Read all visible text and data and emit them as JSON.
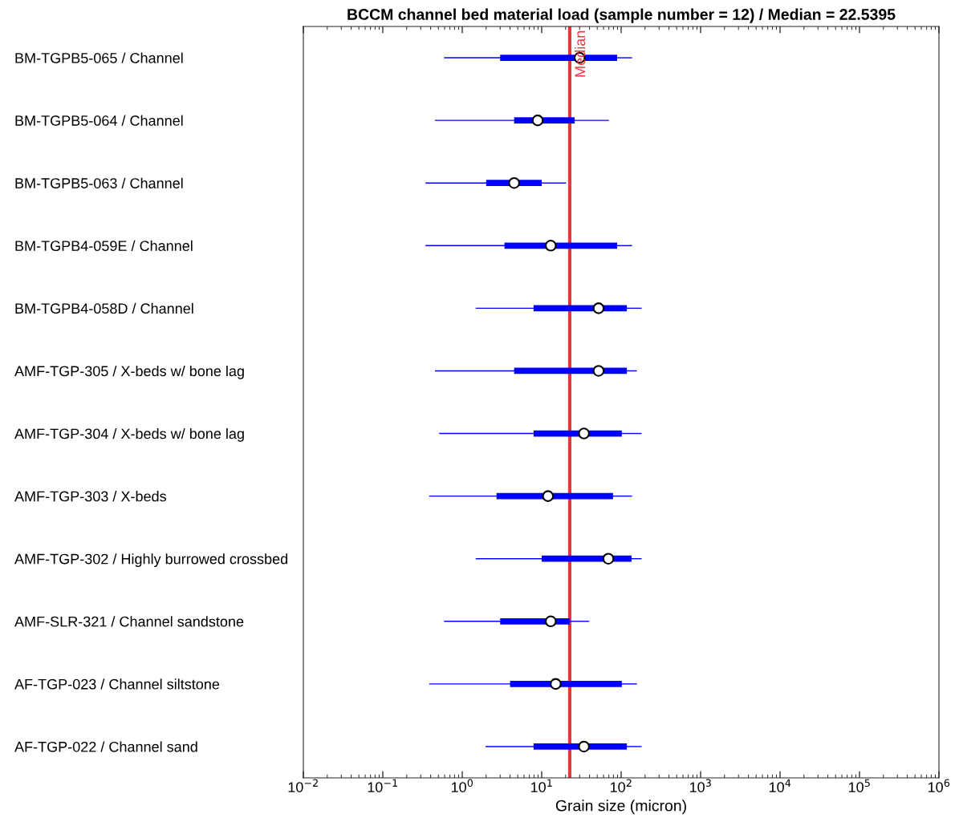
{
  "chart_data": {
    "type": "box",
    "orientation": "horizontal",
    "title": "BCCM channel bed material load (sample number = 12) / Median = 22.5395",
    "xlabel": "Grain size (micron)",
    "log": "x",
    "grid": false,
    "color": "#0000ff",
    "categories": [
      "BM-TGPB5-065 / Channel",
      "BM-TGPB5-064 / Channel",
      "BM-TGPB5-063 / Channel",
      "BM-TGPB4-059E / Channel",
      "BM-TGPB4-058D / Channel",
      "AMF-TGP-305 / X-beds w/ bone lag",
      "AMF-TGP-304 / X-beds w/ bone lag",
      "AMF-TGP-303 / X-beds",
      "AMF-TGP-302 / Highly burrowed crossbed",
      "AMF-SLR-321 / Channel sandstone",
      "AF-TGP-023 / Channel siltstone",
      "AF-TGP-022 / Channel sand"
    ],
    "boxes": [
      {
        "low": 0.6,
        "q1": 3.0,
        "median": 30,
        "q3": 89,
        "high": 135
      },
      {
        "low": 0.46,
        "q1": 4.5,
        "median": 8.9,
        "q3": 26,
        "high": 69
      },
      {
        "low": 0.35,
        "q1": 2.0,
        "median": 4.5,
        "q3": 10,
        "high": 20
      },
      {
        "low": 0.35,
        "q1": 3.4,
        "median": 13,
        "q3": 89,
        "high": 135
      },
      {
        "low": 1.5,
        "q1": 7.9,
        "median": 52,
        "q3": 118,
        "high": 178
      },
      {
        "low": 0.46,
        "q1": 4.5,
        "median": 52,
        "q3": 118,
        "high": 155
      },
      {
        "low": 0.52,
        "q1": 7.9,
        "median": 34,
        "q3": 102,
        "high": 178
      },
      {
        "low": 0.39,
        "q1": 2.7,
        "median": 12,
        "q3": 79,
        "high": 135
      },
      {
        "low": 1.5,
        "q1": 10,
        "median": 69,
        "q3": 135,
        "high": 178
      },
      {
        "low": 0.6,
        "q1": 3.0,
        "median": 13,
        "q3": 22.5,
        "high": 39
      },
      {
        "low": 0.39,
        "q1": 4.0,
        "median": 15,
        "q3": 102,
        "high": 155
      },
      {
        "low": 2.0,
        "q1": 7.9,
        "median": 34,
        "q3": 118,
        "high": 178
      }
    ],
    "xlim": [
      0.01,
      1000000
    ],
    "xticks": [
      {
        "value": 0.01,
        "label": "10$^{−2}$"
      },
      {
        "value": 0.1,
        "label": "10$^{−1}$"
      },
      {
        "value": 1,
        "label": "10$^{0}$"
      },
      {
        "value": 10,
        "label": "10$^{1}$"
      },
      {
        "value": 100,
        "label": "10$^{2}$"
      },
      {
        "value": 1000,
        "label": "10$^{3}$"
      },
      {
        "value": 10000,
        "label": "10$^{4}$"
      },
      {
        "value": 100000,
        "label": "10$^{5}$"
      },
      {
        "value": 1000000,
        "label": "10$^{6}$"
      }
    ],
    "ref_lines": [
      {
        "axis": "x",
        "value": 22.5395,
        "label": "Median",
        "color": "#e8383d"
      }
    ]
  }
}
